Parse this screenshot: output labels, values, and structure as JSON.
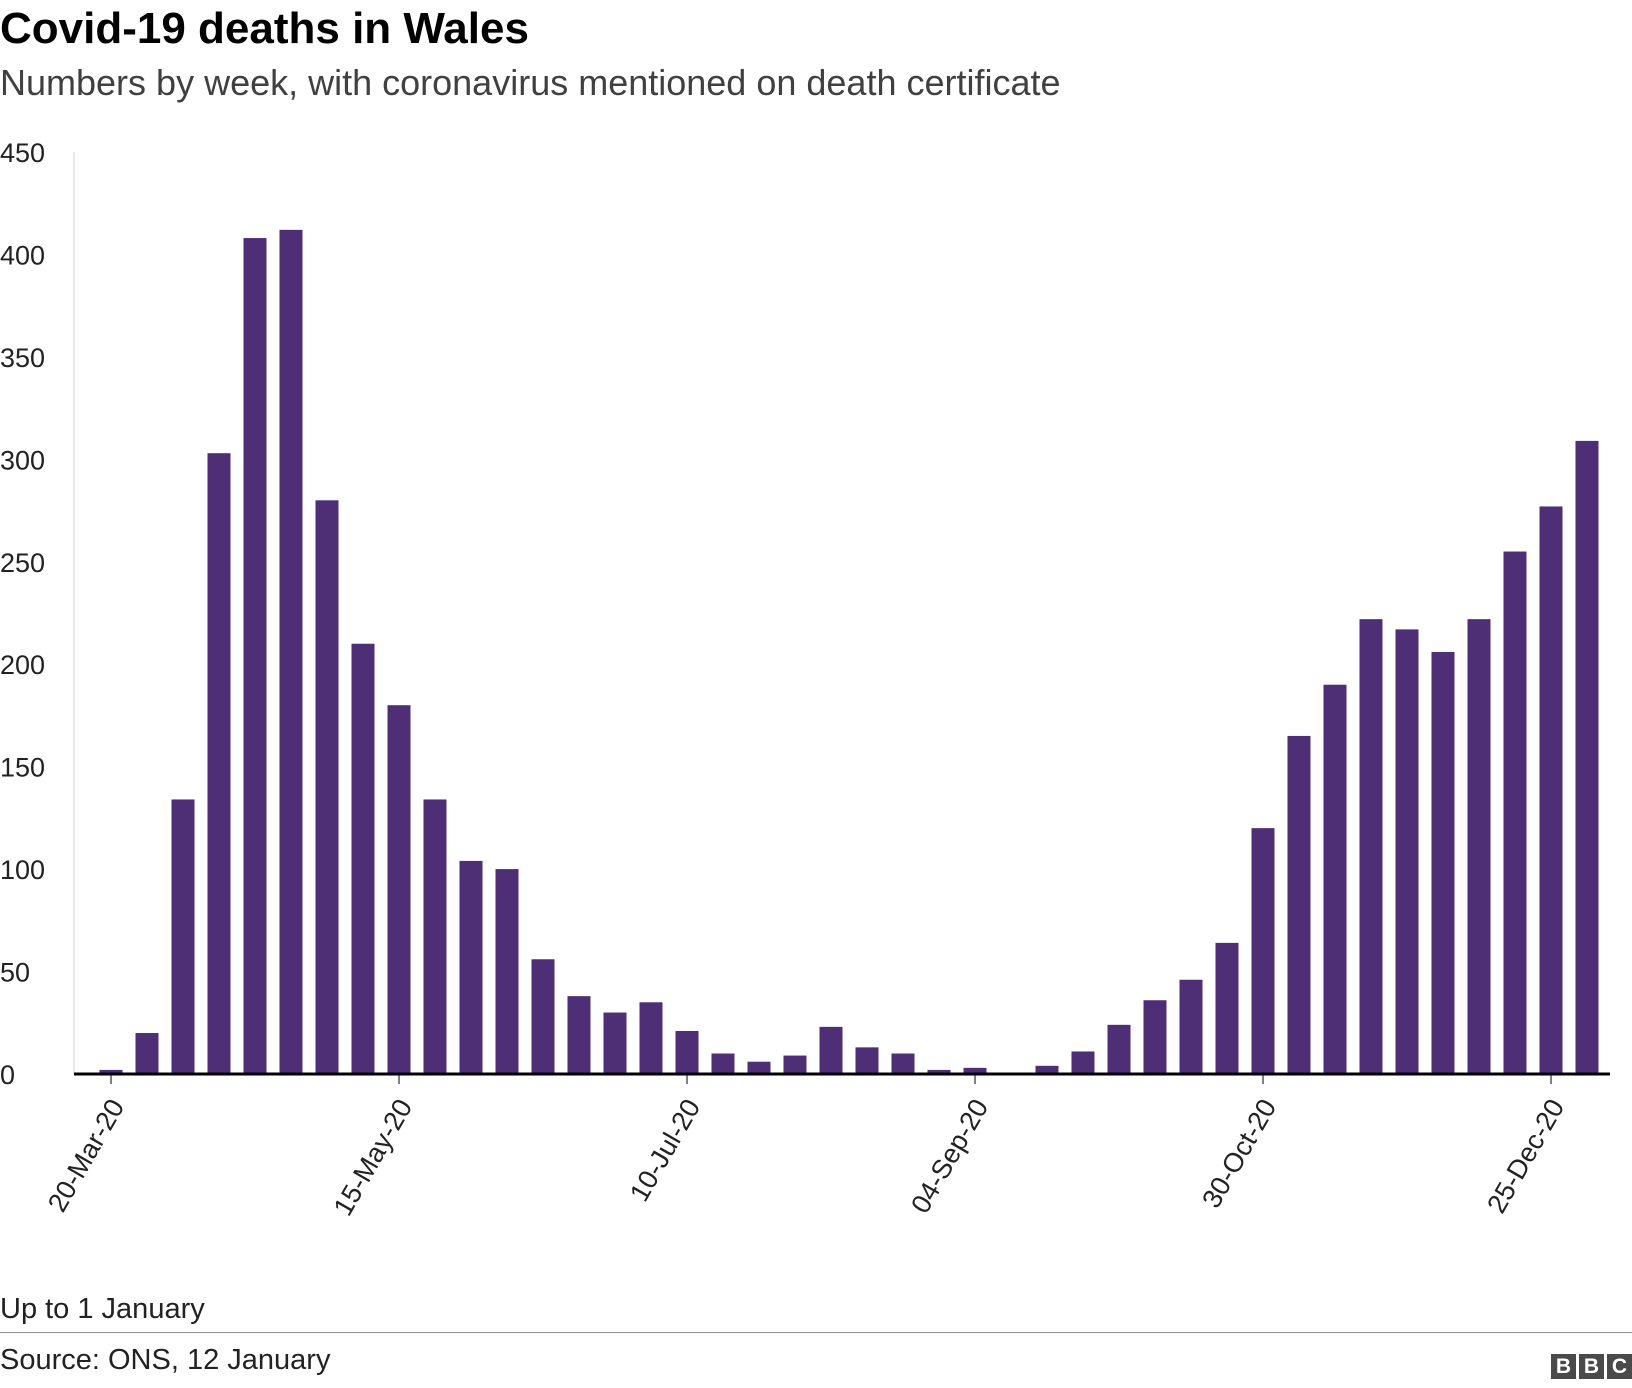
{
  "title": "Covid-19 deaths in Wales",
  "subtitle": "Numbers by week, with coronavirus mentioned on death certificate",
  "note": "Up to 1 January",
  "source": "Source: ONS, 12 January",
  "brand": [
    "B",
    "B",
    "C"
  ],
  "colors": {
    "bar": "#4e2e75",
    "axis": "#000000",
    "text": "#222222",
    "subtitle": "#404040"
  },
  "chart_data": {
    "type": "bar",
    "title": "Covid-19 deaths in Wales",
    "subtitle": "Numbers by week, with coronavirus mentioned on death certificate",
    "xlabel": "",
    "ylabel": "",
    "ylim": [
      0,
      450
    ],
    "yticks": [
      0,
      50,
      100,
      150,
      200,
      250,
      300,
      350,
      400,
      450
    ],
    "grid": false,
    "legend": "none",
    "categories": [
      "20-Mar-20",
      "27-Mar-20",
      "03-Apr-20",
      "10-Apr-20",
      "17-Apr-20",
      "24-Apr-20",
      "01-May-20",
      "08-May-20",
      "15-May-20",
      "22-May-20",
      "29-May-20",
      "05-Jun-20",
      "12-Jun-20",
      "19-Jun-20",
      "26-Jun-20",
      "03-Jul-20",
      "10-Jul-20",
      "17-Jul-20",
      "24-Jul-20",
      "31-Jul-20",
      "07-Aug-20",
      "14-Aug-20",
      "21-Aug-20",
      "28-Aug-20",
      "04-Sep-20",
      "11-Sep-20",
      "18-Sep-20",
      "25-Sep-20",
      "02-Oct-20",
      "09-Oct-20",
      "16-Oct-20",
      "23-Oct-20",
      "30-Oct-20",
      "06-Nov-20",
      "13-Nov-20",
      "20-Nov-20",
      "27-Nov-20",
      "04-Dec-20",
      "11-Dec-20",
      "18-Dec-20",
      "25-Dec-20",
      "01-Jan-21"
    ],
    "tick_labels": [
      "20-Mar-20",
      "15-May-20",
      "10-Jul-20",
      "04-Sep-20",
      "30-Oct-20",
      "25-Dec-20"
    ],
    "values": [
      2,
      20,
      134,
      303,
      408,
      412,
      280,
      210,
      180,
      134,
      104,
      100,
      56,
      38,
      30,
      35,
      21,
      10,
      6,
      9,
      23,
      13,
      10,
      2,
      3,
      0.5,
      4,
      11,
      24,
      36,
      46,
      64,
      120,
      165,
      190,
      222,
      217,
      206,
      222,
      255,
      277,
      309
    ]
  }
}
